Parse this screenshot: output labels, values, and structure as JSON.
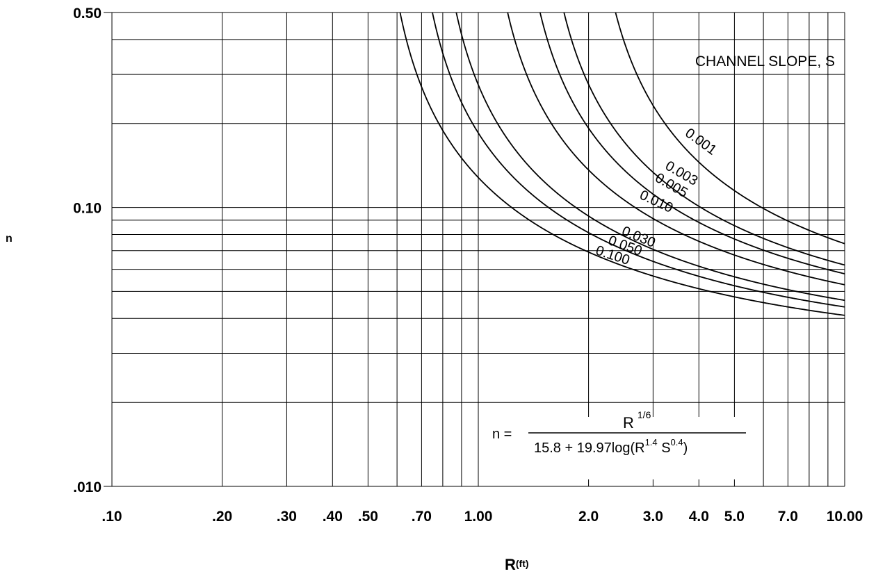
{
  "chart_data": {
    "type": "line",
    "x_scale": "log",
    "y_scale": "log",
    "xlim": [
      0.1,
      10.0
    ],
    "ylim": [
      0.01,
      0.5
    ],
    "xlabel": "R",
    "xlabel_unit": "(ft)",
    "ylabel": "n",
    "grid": true,
    "x_gridlines": [
      0.1,
      0.2,
      0.3,
      0.4,
      0.5,
      0.6,
      0.7,
      0.8,
      0.9,
      1.0,
      2.0,
      3.0,
      4.0,
      5.0,
      6.0,
      7.0,
      8.0,
      9.0,
      10.0
    ],
    "y_gridlines": [
      0.01,
      0.02,
      0.03,
      0.04,
      0.05,
      0.06,
      0.07,
      0.08,
      0.09,
      0.1,
      0.2,
      0.3,
      0.4,
      0.5
    ],
    "x_ticks": [
      {
        "value": 0.1,
        "label": ".10"
      },
      {
        "value": 0.2,
        "label": ".20"
      },
      {
        "value": 0.3,
        "label": ".30"
      },
      {
        "value": 0.4,
        "label": ".40"
      },
      {
        "value": 0.5,
        "label": ".50"
      },
      {
        "value": 0.7,
        "label": ".70"
      },
      {
        "value": 1.0,
        "label": "1.00"
      },
      {
        "value": 2.0,
        "label": "2.0"
      },
      {
        "value": 3.0,
        "label": "3.0"
      },
      {
        "value": 4.0,
        "label": "4.0"
      },
      {
        "value": 5.0,
        "label": "5.0"
      },
      {
        "value": 7.0,
        "label": "7.0"
      },
      {
        "value": 10.0,
        "label": "10.00"
      }
    ],
    "y_ticks": [
      {
        "value": 0.5,
        "label": "0.50"
      },
      {
        "value": 0.1,
        "label": "0.10"
      },
      {
        "value": 0.01,
        "label": ".010"
      }
    ],
    "legend_title": "CHANNEL SLOPE, S",
    "series": [
      {
        "name": "0.001",
        "S": 0.001,
        "label_at": [
          3.65,
          0.182
        ],
        "label_angle": 36
      },
      {
        "name": "0.003",
        "S": 0.003,
        "label_at": [
          3.22,
          0.138
        ],
        "label_angle": 30
      },
      {
        "name": "0.005",
        "S": 0.005,
        "label_at": [
          3.02,
          0.125
        ],
        "label_angle": 30
      },
      {
        "name": "0.010",
        "S": 0.01,
        "label_at": [
          2.74,
          0.108
        ],
        "label_angle": 25
      },
      {
        "name": "0.030",
        "S": 0.03,
        "label_at": [
          2.45,
          0.08
        ],
        "label_angle": 22
      },
      {
        "name": "0.050",
        "S": 0.05,
        "label_at": [
          2.25,
          0.074
        ],
        "label_angle": 20
      },
      {
        "name": "0.100",
        "S": 0.1,
        "label_at": [
          2.08,
          0.068
        ],
        "label_angle": 18
      }
    ],
    "formula": {
      "lhs": "n =",
      "num_base": "R",
      "num_exp": "1/6",
      "den_a": "15.8  + 19.97log(R",
      "den_exp1": "1.4",
      "den_b": " S",
      "den_exp2": "0.4",
      "den_c": ")"
    }
  }
}
